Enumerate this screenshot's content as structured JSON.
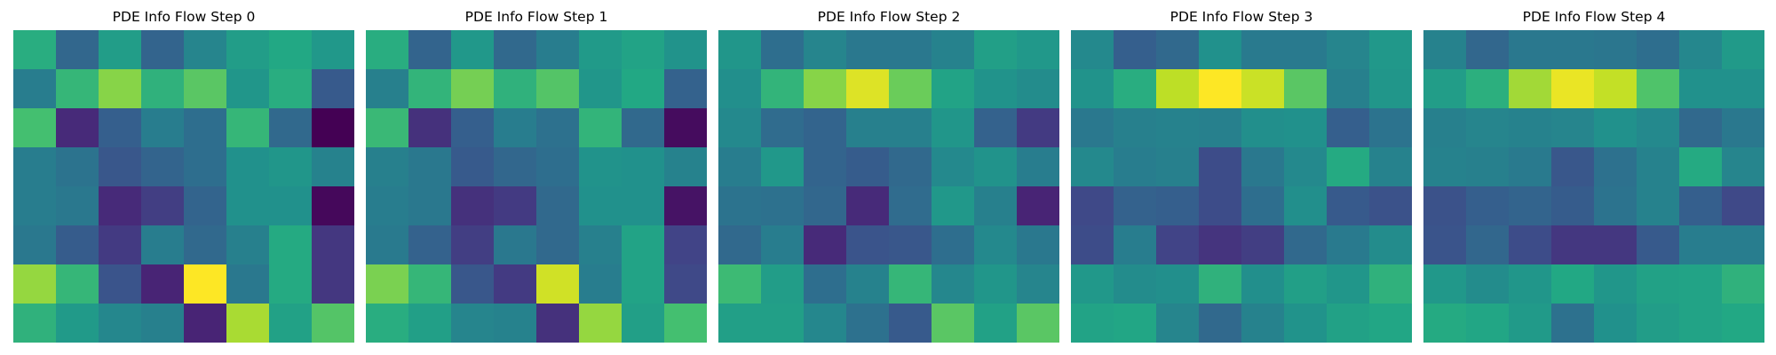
{
  "chart_data": [
    {
      "type": "heatmap",
      "title": "PDE Info Flow Step 0",
      "colormap": "viridis",
      "values": [
        [
          0.62,
          0.33,
          0.55,
          0.32,
          0.45,
          0.55,
          0.6,
          0.53
        ],
        [
          0.42,
          0.66,
          0.82,
          0.64,
          0.74,
          0.52,
          0.62,
          0.28
        ],
        [
          0.7,
          0.12,
          0.3,
          0.42,
          0.36,
          0.66,
          0.34,
          0.0
        ],
        [
          0.42,
          0.38,
          0.27,
          0.32,
          0.36,
          0.5,
          0.52,
          0.44
        ],
        [
          0.42,
          0.4,
          0.12,
          0.18,
          0.32,
          0.5,
          0.5,
          0.02
        ],
        [
          0.4,
          0.29,
          0.17,
          0.42,
          0.34,
          0.43,
          0.61,
          0.16
        ],
        [
          0.84,
          0.66,
          0.26,
          0.1,
          1.0,
          0.4,
          0.61,
          0.16
        ],
        [
          0.64,
          0.54,
          0.46,
          0.43,
          0.1,
          0.87,
          0.57,
          0.73
        ]
      ]
    },
    {
      "type": "heatmap",
      "title": "PDE Info Flow Step 1",
      "colormap": "viridis",
      "values": [
        [
          0.62,
          0.32,
          0.53,
          0.34,
          0.42,
          0.54,
          0.58,
          0.51
        ],
        [
          0.43,
          0.65,
          0.79,
          0.64,
          0.73,
          0.52,
          0.6,
          0.31
        ],
        [
          0.67,
          0.14,
          0.3,
          0.42,
          0.37,
          0.65,
          0.34,
          0.03
        ],
        [
          0.43,
          0.4,
          0.28,
          0.33,
          0.36,
          0.51,
          0.5,
          0.44
        ],
        [
          0.42,
          0.4,
          0.14,
          0.17,
          0.34,
          0.5,
          0.5,
          0.05
        ],
        [
          0.41,
          0.31,
          0.18,
          0.4,
          0.34,
          0.43,
          0.58,
          0.2
        ],
        [
          0.8,
          0.66,
          0.27,
          0.17,
          0.93,
          0.42,
          0.58,
          0.22
        ],
        [
          0.62,
          0.56,
          0.45,
          0.44,
          0.14,
          0.84,
          0.56,
          0.7
        ]
      ]
    },
    {
      "type": "heatmap",
      "title": "PDE Info Flow Step 2",
      "colormap": "viridis",
      "values": [
        [
          0.52,
          0.36,
          0.45,
          0.4,
          0.4,
          0.44,
          0.56,
          0.53
        ],
        [
          0.49,
          0.65,
          0.82,
          0.95,
          0.77,
          0.58,
          0.51,
          0.48
        ],
        [
          0.47,
          0.35,
          0.32,
          0.43,
          0.43,
          0.52,
          0.31,
          0.17
        ],
        [
          0.42,
          0.53,
          0.32,
          0.29,
          0.34,
          0.47,
          0.51,
          0.42
        ],
        [
          0.38,
          0.37,
          0.33,
          0.12,
          0.35,
          0.53,
          0.43,
          0.1
        ],
        [
          0.34,
          0.42,
          0.12,
          0.26,
          0.27,
          0.36,
          0.47,
          0.4
        ],
        [
          0.68,
          0.55,
          0.36,
          0.44,
          0.66,
          0.46,
          0.52,
          0.45
        ],
        [
          0.56,
          0.56,
          0.46,
          0.37,
          0.28,
          0.74,
          0.57,
          0.74
        ]
      ]
    },
    {
      "type": "heatmap",
      "title": "PDE Info Flow Step 3",
      "colormap": "viridis",
      "values": [
        [
          0.47,
          0.3,
          0.34,
          0.5,
          0.41,
          0.41,
          0.45,
          0.53
        ],
        [
          0.51,
          0.62,
          0.9,
          1.0,
          0.92,
          0.74,
          0.43,
          0.52
        ],
        [
          0.4,
          0.43,
          0.44,
          0.43,
          0.49,
          0.5,
          0.3,
          0.38
        ],
        [
          0.47,
          0.42,
          0.43,
          0.23,
          0.4,
          0.47,
          0.61,
          0.44
        ],
        [
          0.22,
          0.31,
          0.3,
          0.23,
          0.36,
          0.49,
          0.28,
          0.25
        ],
        [
          0.23,
          0.42,
          0.2,
          0.15,
          0.18,
          0.34,
          0.41,
          0.48
        ],
        [
          0.53,
          0.48,
          0.49,
          0.64,
          0.49,
          0.56,
          0.52,
          0.64
        ],
        [
          0.58,
          0.59,
          0.45,
          0.34,
          0.44,
          0.51,
          0.57,
          0.59
        ]
      ]
    },
    {
      "type": "heatmap",
      "title": "PDE Info Flow Step 4",
      "colormap": "viridis",
      "values": [
        [
          0.44,
          0.33,
          0.4,
          0.4,
          0.39,
          0.36,
          0.46,
          0.54
        ],
        [
          0.55,
          0.63,
          0.86,
          0.97,
          0.91,
          0.72,
          0.5,
          0.5
        ],
        [
          0.43,
          0.45,
          0.44,
          0.45,
          0.5,
          0.47,
          0.34,
          0.4
        ],
        [
          0.44,
          0.43,
          0.41,
          0.27,
          0.37,
          0.44,
          0.61,
          0.45
        ],
        [
          0.25,
          0.3,
          0.32,
          0.29,
          0.38,
          0.44,
          0.3,
          0.22
        ],
        [
          0.26,
          0.33,
          0.23,
          0.16,
          0.16,
          0.28,
          0.42,
          0.42
        ],
        [
          0.53,
          0.48,
          0.52,
          0.6,
          0.52,
          0.57,
          0.58,
          0.64
        ],
        [
          0.61,
          0.59,
          0.54,
          0.37,
          0.5,
          0.55,
          0.58,
          0.6
        ]
      ]
    }
  ]
}
